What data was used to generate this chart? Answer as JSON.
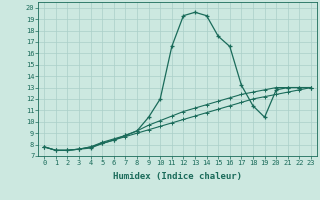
{
  "title": "",
  "xlabel": "Humidex (Indice chaleur)",
  "bg_color": "#cce8e0",
  "grid_color": "#aacfc8",
  "line_color": "#1a6b5a",
  "xlim": [
    -0.5,
    23.5
  ],
  "ylim": [
    7,
    20.5
  ],
  "xticks": [
    0,
    1,
    2,
    3,
    4,
    5,
    6,
    7,
    8,
    9,
    10,
    11,
    12,
    13,
    14,
    15,
    16,
    17,
    18,
    19,
    20,
    21,
    22,
    23
  ],
  "yticks": [
    7,
    8,
    9,
    10,
    11,
    12,
    13,
    14,
    15,
    16,
    17,
    18,
    19,
    20
  ],
  "line1_x": [
    0,
    1,
    2,
    3,
    4,
    5,
    6,
    7,
    8,
    9,
    10,
    11,
    12,
    13,
    14,
    15,
    16,
    17,
    18,
    19,
    20,
    21,
    22,
    23
  ],
  "line1_y": [
    7.8,
    7.5,
    7.5,
    7.6,
    7.7,
    8.1,
    8.4,
    8.8,
    9.2,
    10.4,
    12.0,
    16.6,
    19.3,
    19.6,
    19.3,
    17.5,
    16.6,
    13.2,
    11.4,
    10.4,
    12.8,
    13.0,
    13.0,
    13.0
  ],
  "line2_x": [
    0,
    1,
    2,
    3,
    4,
    5,
    6,
    7,
    8,
    9,
    10,
    11,
    12,
    13,
    14,
    15,
    16,
    17,
    18,
    19,
    20,
    21,
    22,
    23
  ],
  "line2_y": [
    7.8,
    7.5,
    7.5,
    7.6,
    7.8,
    8.2,
    8.5,
    8.8,
    9.2,
    9.7,
    10.1,
    10.5,
    10.9,
    11.2,
    11.5,
    11.8,
    12.1,
    12.4,
    12.6,
    12.8,
    13.0,
    13.0,
    13.0,
    13.0
  ],
  "line3_x": [
    0,
    1,
    2,
    3,
    4,
    5,
    6,
    7,
    8,
    9,
    10,
    11,
    12,
    13,
    14,
    15,
    16,
    17,
    18,
    19,
    20,
    21,
    22,
    23
  ],
  "line3_y": [
    7.8,
    7.5,
    7.5,
    7.6,
    7.8,
    8.1,
    8.4,
    8.7,
    9.0,
    9.3,
    9.6,
    9.9,
    10.2,
    10.5,
    10.8,
    11.1,
    11.4,
    11.7,
    12.0,
    12.2,
    12.4,
    12.6,
    12.8,
    13.0
  ],
  "tick_fontsize": 5.0,
  "xlabel_fontsize": 6.5
}
